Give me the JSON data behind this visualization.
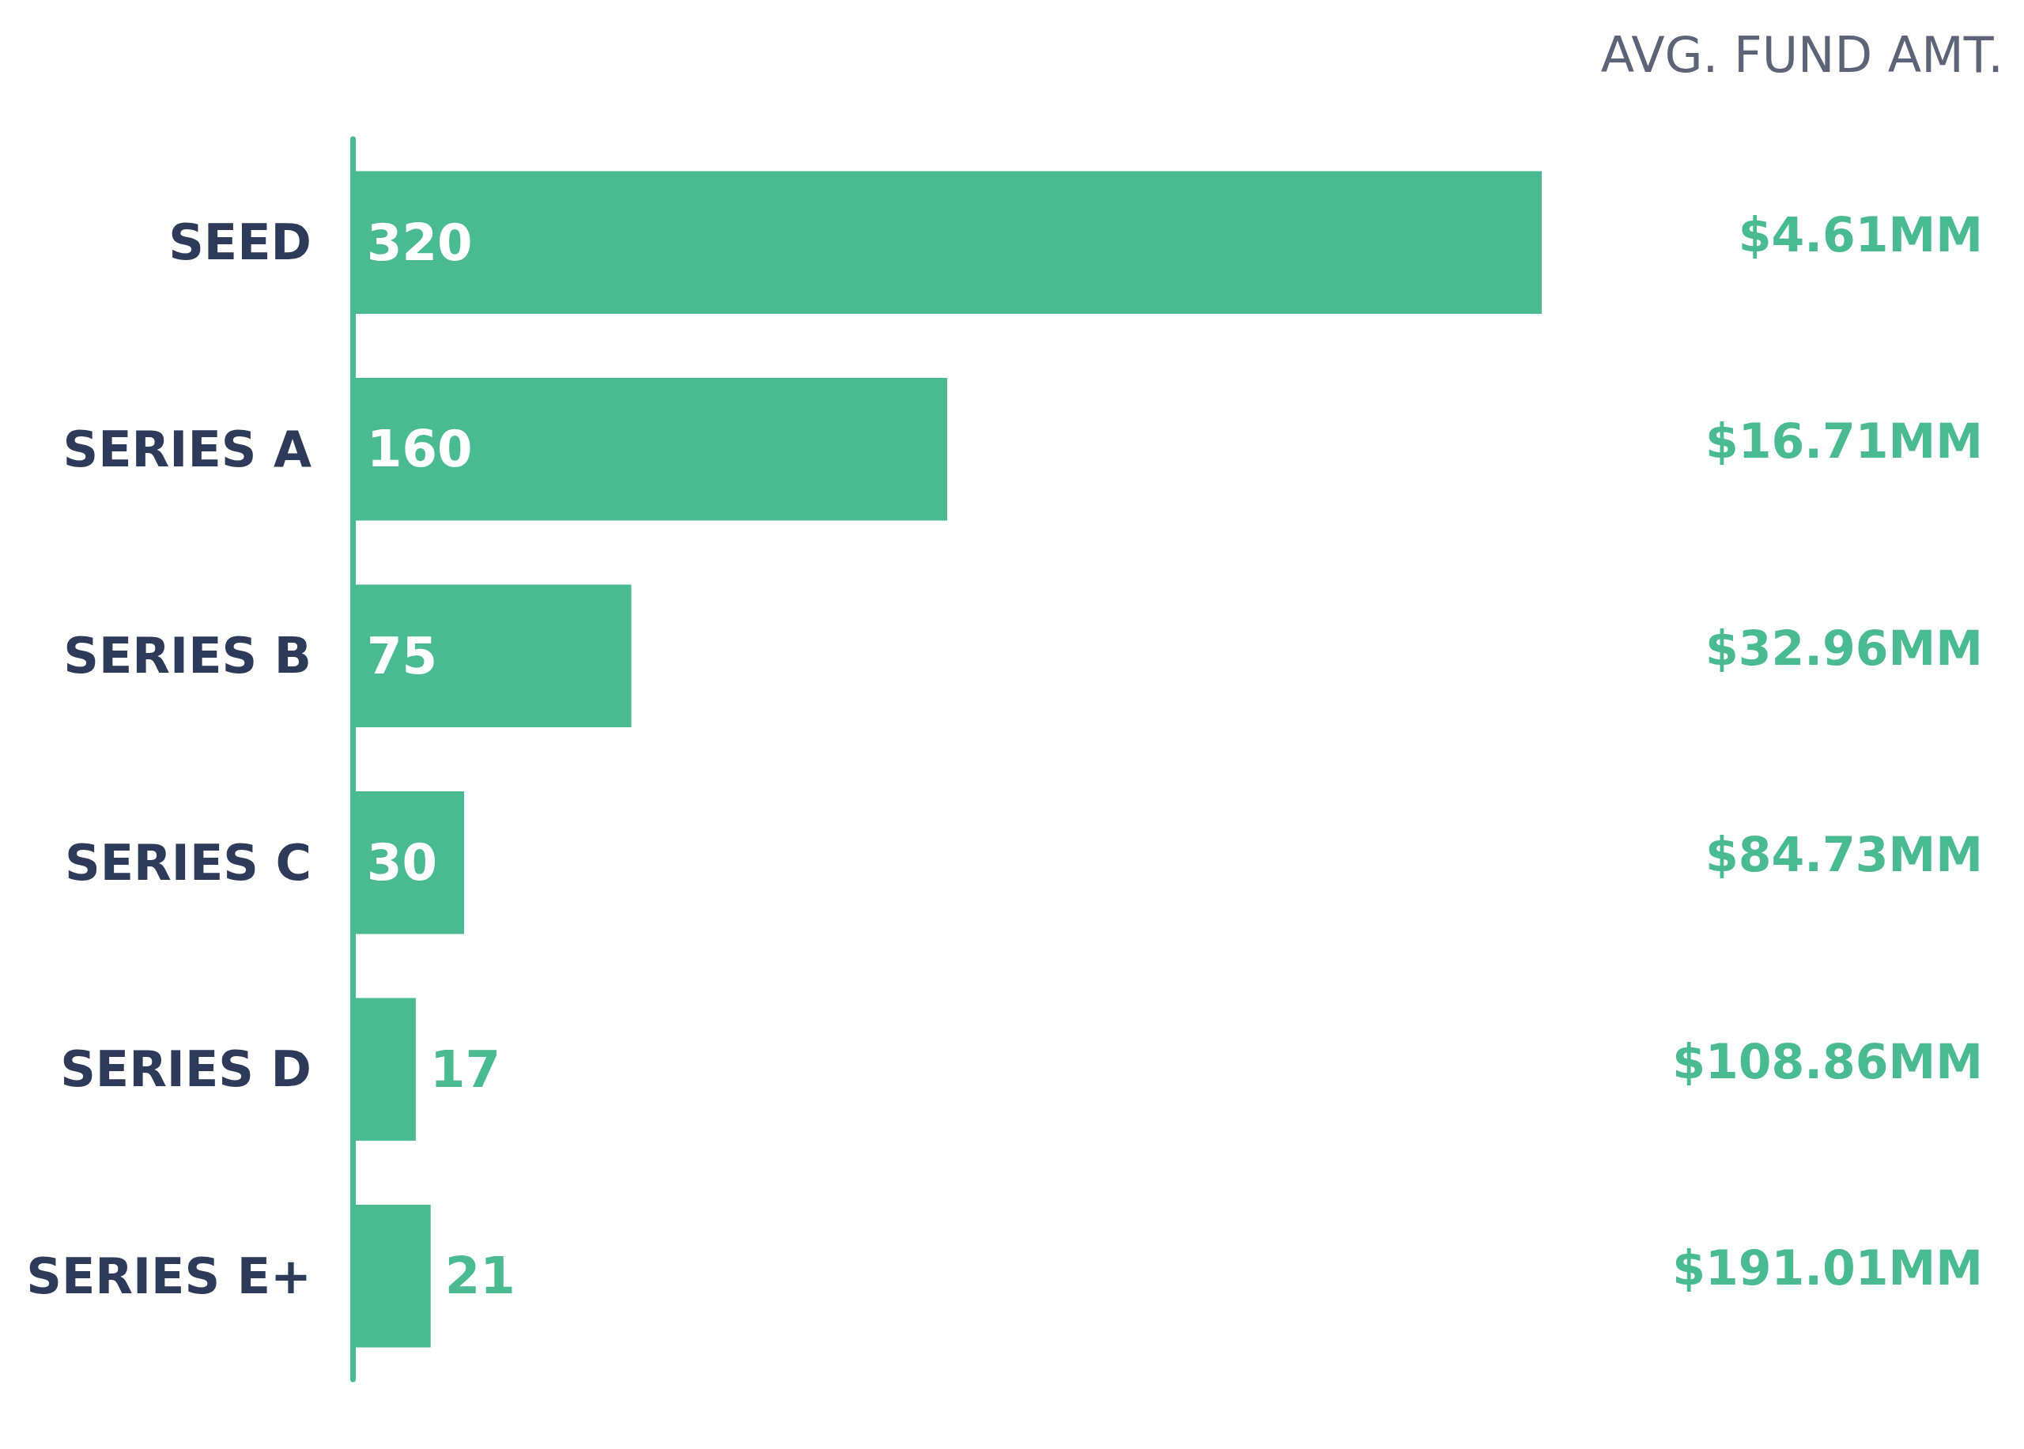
{
  "chart_data": {
    "type": "bar",
    "orientation": "horizontal",
    "categories": [
      "SEED",
      "SERIES A",
      "SERIES B",
      "SERIES C",
      "SERIES D",
      "SERIES E+"
    ],
    "values": [
      320,
      160,
      75,
      30,
      17,
      21
    ],
    "color": "#4aba91",
    "data_labels": true,
    "tick_labels": "y",
    "annotations": [
      "AVG. FUND AMT.",
      "$4.61MM",
      "$16.71MM",
      "$32.96MM",
      "$84.73MM",
      "$108.86MM",
      "$191.01MM"
    ]
  }
}
